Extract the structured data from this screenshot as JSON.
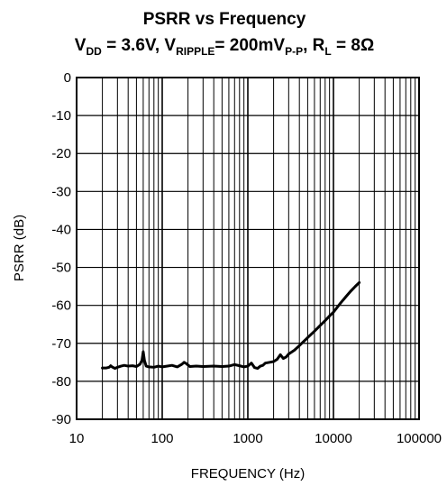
{
  "chart_data": {
    "type": "line",
    "title": "PSRR vs Frequency",
    "subtitle_parts": {
      "vdd_symbol": "V",
      "vdd_sub": "DD",
      "vdd_value": " = 3.6V, ",
      "vripple_symbol": "V",
      "vripple_sub": "RIPPLE",
      "vripple_value": "= 200mV",
      "vripple_value_sub": "P-P",
      "separator": ", ",
      "rl_symbol": "R",
      "rl_sub": "L",
      "rl_value": " = 8Ω"
    },
    "xlabel": "FREQUENCY (Hz)",
    "ylabel": "PSRR (dB)",
    "x_scale": "log",
    "xlim": [
      10,
      100000
    ],
    "ylim": [
      -90,
      0
    ],
    "grid": true,
    "x_ticks": [
      {
        "value": 10,
        "label": "10"
      },
      {
        "value": 100,
        "label": "100"
      },
      {
        "value": 1000,
        "label": "1000"
      },
      {
        "value": 10000,
        "label": "10000"
      },
      {
        "value": 100000,
        "label": "100000"
      }
    ],
    "y_ticks": [
      {
        "value": 0,
        "label": "0"
      },
      {
        "value": -10,
        "label": "-10"
      },
      {
        "value": -20,
        "label": "-20"
      },
      {
        "value": -30,
        "label": "-30"
      },
      {
        "value": -40,
        "label": "-40"
      },
      {
        "value": -50,
        "label": "-50"
      },
      {
        "value": -60,
        "label": "-60"
      },
      {
        "value": -70,
        "label": "-70"
      },
      {
        "value": -80,
        "label": "-80"
      },
      {
        "value": -90,
        "label": "-90"
      }
    ],
    "series": [
      {
        "color": "#000000",
        "points": [
          [
            20,
            -76.5
          ],
          [
            22,
            -76.5
          ],
          [
            24,
            -76.3
          ],
          [
            25,
            -75.9
          ],
          [
            26,
            -76.2
          ],
          [
            28,
            -76.6
          ],
          [
            30,
            -76.3
          ],
          [
            33,
            -76.0
          ],
          [
            36,
            -75.8
          ],
          [
            40,
            -76.0
          ],
          [
            45,
            -75.9
          ],
          [
            50,
            -76.1
          ],
          [
            55,
            -75.5
          ],
          [
            58,
            -74.5
          ],
          [
            60,
            -72.2
          ],
          [
            62,
            -74.5
          ],
          [
            65,
            -76.0
          ],
          [
            70,
            -76.2
          ],
          [
            80,
            -76.3
          ],
          [
            90,
            -76.0
          ],
          [
            100,
            -76.2
          ],
          [
            115,
            -76.0
          ],
          [
            130,
            -75.8
          ],
          [
            150,
            -76.2
          ],
          [
            170,
            -75.5
          ],
          [
            180,
            -75.0
          ],
          [
            190,
            -75.3
          ],
          [
            210,
            -76.1
          ],
          [
            250,
            -76.0
          ],
          [
            300,
            -76.1
          ],
          [
            400,
            -76.0
          ],
          [
            500,
            -76.1
          ],
          [
            600,
            -76.0
          ],
          [
            700,
            -75.6
          ],
          [
            800,
            -75.9
          ],
          [
            900,
            -76.2
          ],
          [
            1000,
            -76.0
          ],
          [
            1100,
            -75.2
          ],
          [
            1200,
            -76.4
          ],
          [
            1300,
            -76.6
          ],
          [
            1400,
            -76.0
          ],
          [
            1500,
            -75.8
          ],
          [
            1600,
            -75.2
          ],
          [
            1800,
            -75.0
          ],
          [
            2000,
            -74.8
          ],
          [
            2200,
            -74.2
          ],
          [
            2400,
            -73.0
          ],
          [
            2600,
            -74.0
          ],
          [
            2800,
            -73.6
          ],
          [
            3000,
            -72.8
          ],
          [
            3500,
            -71.8
          ],
          [
            4000,
            -70.6
          ],
          [
            5000,
            -68.5
          ],
          [
            6000,
            -66.8
          ],
          [
            7000,
            -65.3
          ],
          [
            8000,
            -64.0
          ],
          [
            9000,
            -62.8
          ],
          [
            10000,
            -61.8
          ],
          [
            12000,
            -59.5
          ],
          [
            14000,
            -57.7
          ],
          [
            16000,
            -56.2
          ],
          [
            18000,
            -55.0
          ],
          [
            20000,
            -54.0
          ]
        ]
      }
    ]
  }
}
